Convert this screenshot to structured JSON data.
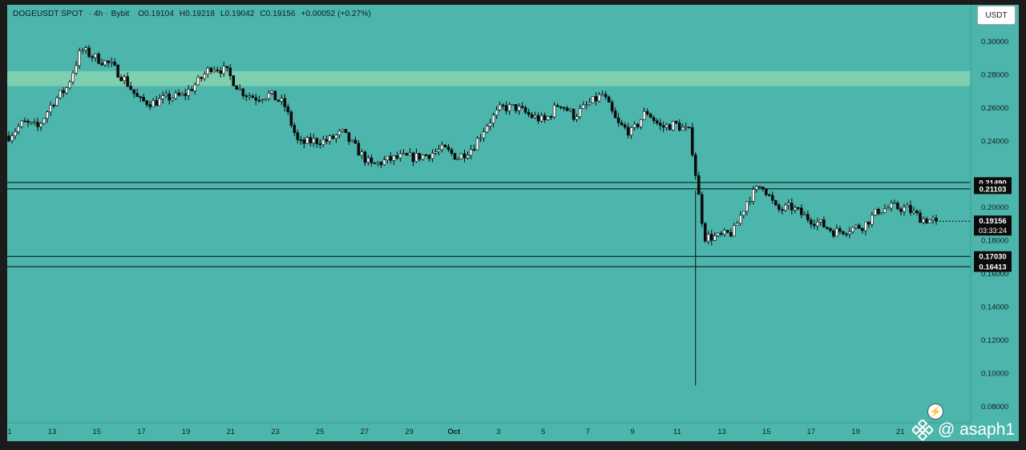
{
  "header": {
    "symbol": "DOGEUSDT SPOT",
    "interval": "· 4h ·",
    "exchange": "Bybit",
    "open": "O0.19104",
    "high": "H0.19218",
    "low": "L0.19042",
    "close": "C0.19156",
    "change": "+0.00052 (+0.27%)"
  },
  "currency_button": "USDT",
  "watermark": {
    "text": "@ asaph1",
    "icon": "binance-logo-icon"
  },
  "colors": {
    "background": "#4db6ac",
    "zone": "#7ecfb0",
    "bull_body": "#ffffff",
    "bear_body": "#0b0b0b",
    "wick": "#0b0b0b",
    "label_bg": "#0b0b0b",
    "label_text": "#ffffff"
  },
  "chart_data": {
    "type": "candlestick",
    "title": "",
    "xlabel": "",
    "ylabel": "",
    "ylim": [
      0.07,
      0.322
    ],
    "x_ticks": [
      "1",
      "13",
      "15",
      "17",
      "19",
      "21",
      "23",
      "25",
      "27",
      "29",
      "Oct",
      "3",
      "5",
      "7",
      "9",
      "11",
      "13",
      "15",
      "17",
      "19",
      "21"
    ],
    "y_ticks": [
      "0.30000",
      "0.28000",
      "0.26000",
      "0.24000",
      "0.20000",
      "0.18000",
      "0.16000",
      "0.14000",
      "0.12000",
      "0.10000",
      "0.08000"
    ],
    "y_tick_values": [
      0.3,
      0.28,
      0.26,
      0.24,
      0.2,
      0.18,
      0.16,
      0.14,
      0.12,
      0.1,
      0.08
    ],
    "levels": [
      {
        "label": "0.21490",
        "value": 0.2149
      },
      {
        "label": "0.21103",
        "value": 0.21103
      },
      {
        "label": "0.17030",
        "value": 0.1703
      },
      {
        "label": "0.16413",
        "value": 0.16413
      }
    ],
    "current_price": {
      "label": "0.19156",
      "value": 0.19156,
      "countdown": "03:33:24"
    },
    "zone": {
      "from": 0.273,
      "to": 0.282
    },
    "price_path": [
      0.243,
      0.251,
      0.248,
      0.263,
      0.272,
      0.295,
      0.29,
      0.286,
      0.277,
      0.264,
      0.263,
      0.266,
      0.267,
      0.275,
      0.285,
      0.282,
      0.27,
      0.266,
      0.268,
      0.262,
      0.238,
      0.24,
      0.24,
      0.245,
      0.235,
      0.225,
      0.228,
      0.23,
      0.23,
      0.232,
      0.235,
      0.23,
      0.236,
      0.25,
      0.26,
      0.26,
      0.255,
      0.252,
      0.263,
      0.255,
      0.262,
      0.268,
      0.25,
      0.245,
      0.258,
      0.248,
      0.25,
      0.245,
      0.182,
      0.182,
      0.185,
      0.205,
      0.214,
      0.198,
      0.2,
      0.194,
      0.19,
      0.185,
      0.187,
      0.189,
      0.198,
      0.2,
      0.199,
      0.193,
      0.19156
    ]
  }
}
